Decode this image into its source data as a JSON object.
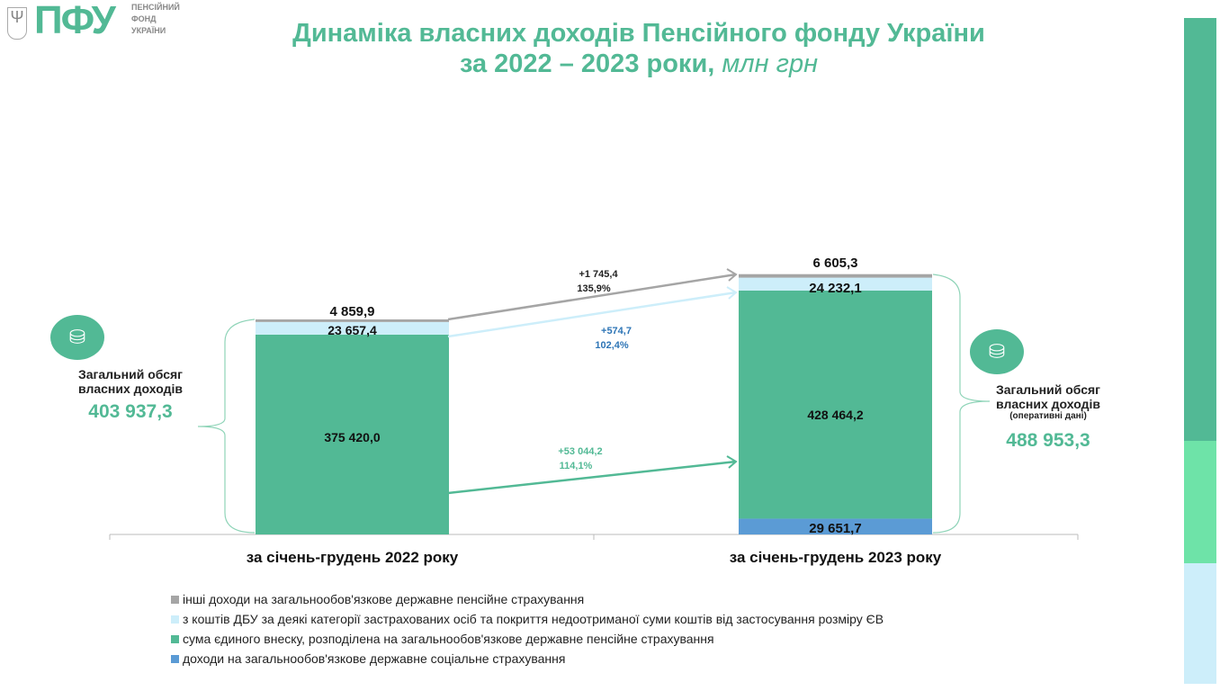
{
  "header": {
    "logo_abbr": "ПФУ",
    "logo_text": [
      "ПЕНСІЙНИЙ",
      "ФОНД",
      "УКРАЇНИ"
    ],
    "title_line1": "Динаміка власних доходів Пенсійного фонду України",
    "title_line2": "за 2022 – 2023 роки,",
    "title_unit": "млн грн"
  },
  "left_summary": {
    "label1": "Загальний обсяг",
    "label2": "власних доходів",
    "value": "403 937,3"
  },
  "right_summary": {
    "label1": "Загальний обсяг",
    "label2": "власних доходів",
    "note": "(оперативні дані)",
    "value": "488 953,3"
  },
  "changes": [
    {
      "delta": "+1 745,4",
      "pct": "135,9%"
    },
    {
      "delta": "+574,7",
      "pct": "102,4%"
    },
    {
      "delta": "+53 044,2",
      "pct": "114,1%"
    }
  ],
  "chart_data": {
    "type": "bar",
    "stacked": true,
    "title": "Динаміка власних доходів Пенсійного фонду України за 2022 – 2023 роки, млн грн",
    "categories": [
      "за січень-грудень 2022 року",
      "за січень-грудень 2023 року"
    ],
    "series": [
      {
        "name": "доходи на загальнообов'язкове державне соціальне страхування",
        "color": "#5b9bd5",
        "values": [
          0,
          29651.7
        ],
        "labels": [
          "",
          "29 651,7"
        ]
      },
      {
        "name": "сума єдиного внеску, розподілена на загальнообов'язкове державне пенсійне страхування",
        "color": "#52b995",
        "values": [
          375420.0,
          428464.2
        ],
        "labels": [
          "375 420,0",
          "428 464,2"
        ]
      },
      {
        "name": "з коштів ДБУ за деякі категорії застрахованих осіб та покриття недоотриманої суми коштів від застосування розміру ЄВ",
        "color": "#cdeefa",
        "values": [
          23657.4,
          24232.1
        ],
        "labels": [
          "23 657,4",
          "24 232,1"
        ]
      },
      {
        "name": "інші доходи на загальнообов'язкове державне пенсійне страхування",
        "color": "#a5a5a5",
        "values": [
          4859.9,
          6605.3
        ],
        "labels": [
          "4 859,9",
          "6 605,3"
        ]
      }
    ],
    "legend_order": [
      3,
      2,
      1,
      0
    ],
    "legend": "bottom-left"
  }
}
